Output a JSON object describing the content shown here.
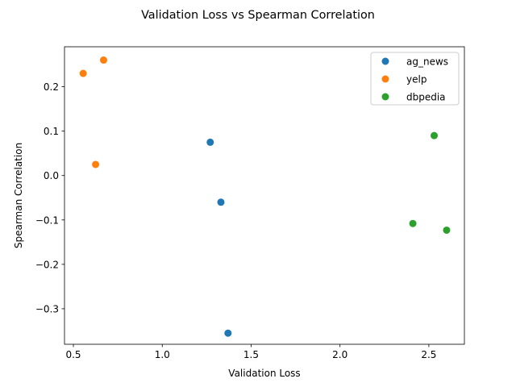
{
  "chart_data": {
    "type": "scatter",
    "title": "Validation Loss vs Spearman Correlation",
    "xlabel": "Validation Loss",
    "ylabel": "Spearman Correlation",
    "xlim": [
      0.45,
      2.7
    ],
    "ylim": [
      -0.38,
      0.29
    ],
    "xticks": [
      0.5,
      1.0,
      1.5,
      2.0,
      2.5
    ],
    "xtick_labels": [
      "0.5",
      "1.0",
      "1.5",
      "2.0",
      "2.5"
    ],
    "yticks": [
      0.2,
      0.1,
      0.0,
      -0.1,
      -0.2,
      -0.3
    ],
    "ytick_labels": [
      "0.2",
      "0.1",
      "0.0",
      "−0.1",
      "−0.2",
      "−0.3"
    ],
    "grid": false,
    "legend_position": "top-right",
    "series": [
      {
        "name": "ag_news",
        "color": "#1f77b4",
        "points": [
          {
            "x": 1.27,
            "y": 0.075
          },
          {
            "x": 1.33,
            "y": -0.06
          },
          {
            "x": 1.37,
            "y": -0.355
          }
        ]
      },
      {
        "name": "yelp",
        "color": "#ff7f0e",
        "points": [
          {
            "x": 0.555,
            "y": 0.23
          },
          {
            "x": 0.67,
            "y": 0.26
          },
          {
            "x": 0.625,
            "y": 0.025
          }
        ]
      },
      {
        "name": "dbpedia",
        "color": "#2ca02c",
        "points": [
          {
            "x": 2.53,
            "y": 0.09
          },
          {
            "x": 2.41,
            "y": -0.108
          },
          {
            "x": 2.6,
            "y": -0.123
          }
        ]
      }
    ]
  }
}
